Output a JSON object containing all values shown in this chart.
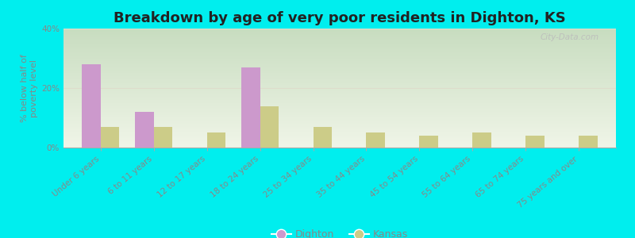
{
  "title": "Breakdown by age of very poor residents in Dighton, KS",
  "ylabel": "% below half of\npoverty level",
  "categories": [
    "Under 6 years",
    "6 to 11 years",
    "12 to 17 years",
    "18 to 24 years",
    "25 to 34 years",
    "35 to 44 years",
    "45 to 54 years",
    "55 to 64 years",
    "65 to 74 years",
    "75 years and over"
  ],
  "dighton_values": [
    28,
    12,
    0,
    27,
    0,
    0,
    0,
    0,
    0,
    0
  ],
  "kansas_values": [
    7,
    7,
    5,
    14,
    7,
    5,
    4,
    5,
    4,
    4
  ],
  "dighton_color": "#cc99cc",
  "kansas_color": "#cccc88",
  "background_color": "#00eeee",
  "plot_bg_color_top": "#c8ddc0",
  "plot_bg_color_bottom": "#f0f5e8",
  "ylim": [
    0,
    40
  ],
  "yticks": [
    0,
    20,
    40
  ],
  "bar_width": 0.35,
  "title_fontsize": 13,
  "axis_label_fontsize": 8,
  "tick_fontsize": 7.5,
  "legend_fontsize": 9,
  "watermark_text": "City-Data.com",
  "grid_color": "#ddddcc",
  "tick_color": "#888888",
  "label_color": "#888888"
}
